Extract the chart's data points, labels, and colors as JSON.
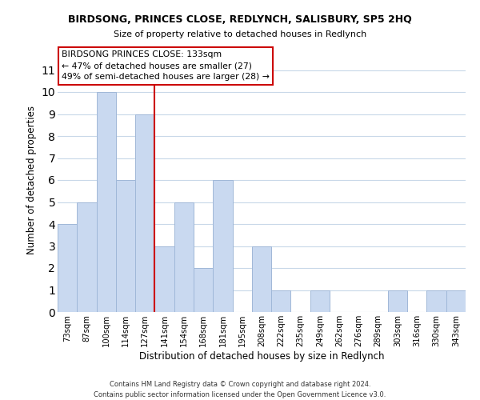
{
  "title": "BIRDSONG, PRINCES CLOSE, REDLYNCH, SALISBURY, SP5 2HQ",
  "subtitle": "Size of property relative to detached houses in Redlynch",
  "xlabel": "Distribution of detached houses by size in Redlynch",
  "ylabel": "Number of detached properties",
  "bin_labels": [
    "73sqm",
    "87sqm",
    "100sqm",
    "114sqm",
    "127sqm",
    "141sqm",
    "154sqm",
    "168sqm",
    "181sqm",
    "195sqm",
    "208sqm",
    "222sqm",
    "235sqm",
    "249sqm",
    "262sqm",
    "276sqm",
    "289sqm",
    "303sqm",
    "316sqm",
    "330sqm",
    "343sqm"
  ],
  "bar_heights": [
    4,
    5,
    10,
    6,
    9,
    3,
    5,
    2,
    6,
    0,
    3,
    1,
    0,
    1,
    0,
    0,
    0,
    1,
    0,
    1,
    1
  ],
  "bar_color": "#c9d9f0",
  "bar_edge_color": "#a0b8d8",
  "vline_x_bin": 5,
  "vline_color": "#cc0000",
  "annotation_title": "BIRDSONG PRINCES CLOSE: 133sqm",
  "annotation_line1": "← 47% of detached houses are smaller (27)",
  "annotation_line2": "49% of semi-detached houses are larger (28) →",
  "annotation_box_color": "#ffffff",
  "annotation_box_edge": "#cc0000",
  "ylim": [
    0,
    12
  ],
  "yticks": [
    0,
    1,
    2,
    3,
    4,
    5,
    6,
    7,
    8,
    9,
    10,
    11
  ],
  "footer_line1": "Contains HM Land Registry data © Crown copyright and database right 2024.",
  "footer_line2": "Contains public sector information licensed under the Open Government Licence v3.0.",
  "bg_color": "#ffffff",
  "grid_color": "#c8d8e8"
}
